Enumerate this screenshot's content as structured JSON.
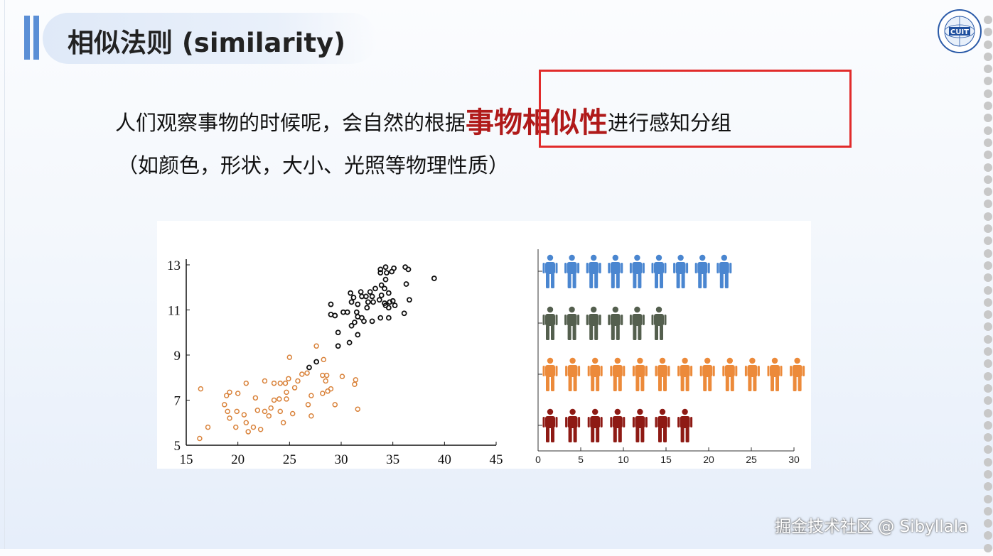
{
  "slide": {
    "title": "相似法则 (similarity)",
    "logo_text": "CUIT",
    "line1_before": "人们观察事物的时候呢，会自然的根据",
    "line1_highlight": "事物相似性",
    "line1_after": "进行感知分组",
    "line2": "（如颜色，形状，大小、光照等物理性质）",
    "watermark": "掘金技术社区 @ Sibyllala",
    "colors": {
      "accent": "#5b8fd6",
      "highlight_text": "#b01a1a",
      "highlight_box": "#e12b2b"
    }
  },
  "chart_data": [
    {
      "type": "scatter",
      "xlim": [
        15,
        45
      ],
      "ylim": [
        5,
        13
      ],
      "xticks": [
        "15",
        "20",
        "25",
        "30",
        "35",
        "40",
        "45"
      ],
      "yticks": [
        "5",
        "7",
        "9",
        "11",
        "13"
      ],
      "grid": false,
      "series": [
        {
          "color": "#d9823a",
          "marker": "open-circle",
          "points": [
            [
              16.3,
              5.3
            ],
            [
              16.4,
              7.5
            ],
            [
              17.1,
              5.8
            ],
            [
              18.7,
              6.8
            ],
            [
              18.9,
              7.2
            ],
            [
              19.0,
              6.5
            ],
            [
              19.2,
              7.35
            ],
            [
              19.2,
              6.2
            ],
            [
              19.8,
              5.8
            ],
            [
              19.9,
              6.5
            ],
            [
              20.0,
              7.3
            ],
            [
              20.6,
              6.35
            ],
            [
              20.8,
              6.0
            ],
            [
              20.8,
              7.75
            ],
            [
              21.0,
              5.6
            ],
            [
              21.5,
              5.8
            ],
            [
              21.7,
              7.1
            ],
            [
              21.9,
              6.55
            ],
            [
              22.2,
              5.7
            ],
            [
              22.6,
              7.85
            ],
            [
              22.6,
              6.5
            ],
            [
              23.0,
              6.3
            ],
            [
              23.2,
              6.65
            ],
            [
              23.5,
              7.0
            ],
            [
              23.5,
              7.75
            ],
            [
              24.0,
              7.05
            ],
            [
              24.1,
              7.75
            ],
            [
              24.1,
              6.5
            ],
            [
              24.4,
              6.0
            ],
            [
              24.6,
              7.75
            ],
            [
              24.7,
              7.05
            ],
            [
              24.7,
              7.35
            ],
            [
              24.9,
              7.95
            ],
            [
              25.0,
              8.9
            ],
            [
              25.3,
              6.4
            ],
            [
              25.5,
              7.55
            ],
            [
              25.8,
              7.85
            ],
            [
              26.2,
              8.15
            ],
            [
              26.7,
              8.2
            ],
            [
              26.8,
              6.8
            ],
            [
              27.1,
              6.3
            ],
            [
              27.1,
              7.2
            ],
            [
              27.6,
              9.4
            ],
            [
              28.2,
              8.1
            ],
            [
              28.2,
              7.3
            ],
            [
              28.3,
              8.8
            ],
            [
              28.5,
              7.85
            ],
            [
              28.6,
              8.1
            ],
            [
              28.7,
              7.4
            ],
            [
              29.0,
              7.5
            ],
            [
              29.4,
              6.8
            ],
            [
              30.1,
              8.05
            ],
            [
              31.3,
              7.7
            ],
            [
              31.4,
              7.9
            ],
            [
              31.6,
              6.6
            ]
          ]
        },
        {
          "color": "#111111",
          "marker": "open-circle",
          "points": [
            [
              26.9,
              8.45
            ],
            [
              27.6,
              8.7
            ],
            [
              29.0,
              11.25
            ],
            [
              29.0,
              10.8
            ],
            [
              29.4,
              10.75
            ],
            [
              29.7,
              10.0
            ],
            [
              29.7,
              9.4
            ],
            [
              30.2,
              10.9
            ],
            [
              30.6,
              10.9
            ],
            [
              30.8,
              9.55
            ],
            [
              30.9,
              11.75
            ],
            [
              31.0,
              11.35
            ],
            [
              31.0,
              10.3
            ],
            [
              31.2,
              11.55
            ],
            [
              31.3,
              10.45
            ],
            [
              31.5,
              10.9
            ],
            [
              31.6,
              10.7
            ],
            [
              31.6,
              11.25
            ],
            [
              31.6,
              9.9
            ],
            [
              31.9,
              11.8
            ],
            [
              32.0,
              11.6
            ],
            [
              32.0,
              10.65
            ],
            [
              32.2,
              10.5
            ],
            [
              32.4,
              11.6
            ],
            [
              32.5,
              11.1
            ],
            [
              32.6,
              11.35
            ],
            [
              32.8,
              11.8
            ],
            [
              33.0,
              11.6
            ],
            [
              33.0,
              10.5
            ],
            [
              33.1,
              11.35
            ],
            [
              33.3,
              11.95
            ],
            [
              33.7,
              11.45
            ],
            [
              33.8,
              12.65
            ],
            [
              33.8,
              12.8
            ],
            [
              33.8,
              10.65
            ],
            [
              33.9,
              12.1
            ],
            [
              33.9,
              11.65
            ],
            [
              34.2,
              11.95
            ],
            [
              34.2,
              11.3
            ],
            [
              34.3,
              12.9
            ],
            [
              34.3,
              12.35
            ],
            [
              34.3,
              11.2
            ],
            [
              34.4,
              12.65
            ],
            [
              34.6,
              11.75
            ],
            [
              34.6,
              10.65
            ],
            [
              34.6,
              11.1
            ],
            [
              34.7,
              11.35
            ],
            [
              34.9,
              12.7
            ],
            [
              35.0,
              11.4
            ],
            [
              35.1,
              12.85
            ],
            [
              35.2,
              11.2
            ],
            [
              36.1,
              10.85
            ],
            [
              36.2,
              12.9
            ],
            [
              36.3,
              12.15
            ],
            [
              36.5,
              12.8
            ],
            [
              36.6,
              11.45
            ],
            [
              39.0,
              12.4
            ]
          ]
        }
      ]
    },
    {
      "type": "bar",
      "style": "pictogram",
      "orientation": "horizontal",
      "xlim": [
        0,
        30
      ],
      "xticks": [
        "0",
        "5",
        "10",
        "15",
        "20",
        "25",
        "30"
      ],
      "rows": [
        {
          "color": "#4a86d0",
          "icons": 9
        },
        {
          "color": "#545f4e",
          "icons": 6
        },
        {
          "color": "#ec8a3a",
          "icons": 12
        },
        {
          "color": "#8e1a14",
          "icons": 7
        }
      ]
    }
  ]
}
